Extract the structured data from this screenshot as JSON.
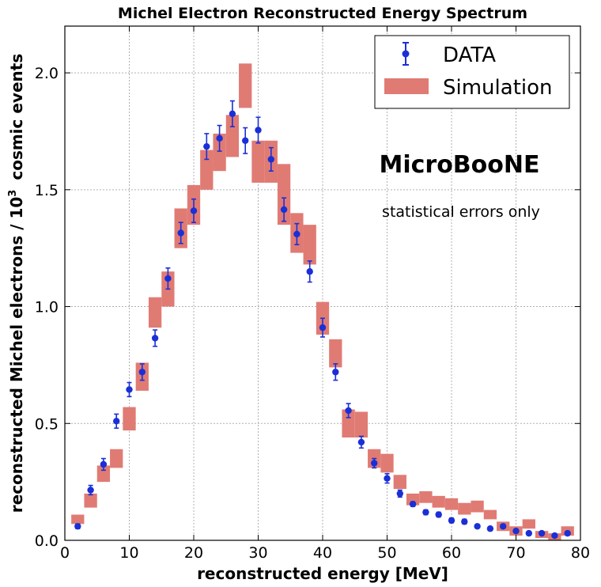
{
  "chart_data": {
    "type": "scatter",
    "title": "Michel Electron Reconstructed Energy Spectrum",
    "xlabel": "reconstructed energy [MeV]",
    "ylabel_prefix": "reconstructed Michel electrons / 10",
    "ylabel_exponent": "3",
    "ylabel_suffix": "cosmic events",
    "xlim": [
      0,
      80
    ],
    "ylim": [
      0,
      2.2
    ],
    "xticks": [
      0,
      10,
      20,
      30,
      40,
      50,
      60,
      70,
      80
    ],
    "yticks": [
      0.0,
      0.5,
      1.0,
      1.5,
      2.0
    ],
    "xtick_labels": [
      "0",
      "10",
      "20",
      "30",
      "40",
      "50",
      "60",
      "70",
      "80"
    ],
    "ytick_labels": [
      "0.0",
      "0.5",
      "1.0",
      "1.5",
      "2.0"
    ],
    "grid": true,
    "legend_position": "top-right",
    "annotations": [
      "MicroBooNE",
      "statistical errors only"
    ],
    "series": [
      {
        "name": "DATA",
        "color": "#1a2fd6",
        "x": [
          2,
          4,
          6,
          8,
          10,
          12,
          14,
          16,
          18,
          20,
          22,
          24,
          26,
          28,
          30,
          32,
          34,
          36,
          38,
          40,
          42,
          44,
          46,
          48,
          50,
          52,
          54,
          56,
          58,
          60,
          62,
          64,
          66,
          68,
          70,
          72,
          74,
          76,
          78
        ],
        "y": [
          0.06,
          0.215,
          0.325,
          0.51,
          0.645,
          0.72,
          0.865,
          1.12,
          1.315,
          1.41,
          1.685,
          1.72,
          1.825,
          1.71,
          1.755,
          1.63,
          1.415,
          1.31,
          1.15,
          0.91,
          0.72,
          0.555,
          0.42,
          0.33,
          0.265,
          0.2,
          0.155,
          0.12,
          0.11,
          0.085,
          0.08,
          0.06,
          0.05,
          0.06,
          0.04,
          0.03,
          0.03,
          0.02,
          0.03
        ],
        "err": [
          0.01,
          0.02,
          0.025,
          0.03,
          0.03,
          0.035,
          0.035,
          0.045,
          0.045,
          0.05,
          0.055,
          0.055,
          0.055,
          0.055,
          0.055,
          0.05,
          0.05,
          0.045,
          0.045,
          0.04,
          0.035,
          0.03,
          0.025,
          0.02,
          0.02,
          0.015,
          0.01,
          0.01,
          0.01,
          0.01,
          0.01,
          0.005,
          0.005,
          0.005,
          0.005,
          0.005,
          0.005,
          0.005,
          0.005
        ]
      },
      {
        "name": "Simulation",
        "color": "#e07b74",
        "x": [
          2,
          4,
          6,
          8,
          10,
          12,
          14,
          16,
          18,
          20,
          22,
          24,
          26,
          28,
          30,
          32,
          34,
          36,
          38,
          40,
          42,
          44,
          46,
          48,
          50,
          52,
          54,
          56,
          58,
          60,
          62,
          64,
          66,
          68,
          70,
          72,
          74,
          76,
          78
        ],
        "y_low": [
          0.07,
          0.14,
          0.25,
          0.31,
          0.47,
          0.64,
          0.91,
          1.0,
          1.25,
          1.35,
          1.5,
          1.58,
          1.64,
          1.85,
          1.53,
          1.53,
          1.35,
          1.23,
          1.18,
          0.88,
          0.74,
          0.44,
          0.44,
          0.31,
          0.29,
          0.22,
          0.15,
          0.16,
          0.14,
          0.13,
          0.11,
          0.12,
          0.09,
          0.04,
          0.02,
          0.05,
          0.01,
          0.0,
          0.02
        ],
        "y_high": [
          0.11,
          0.2,
          0.32,
          0.39,
          0.57,
          0.76,
          1.04,
          1.15,
          1.42,
          1.52,
          1.67,
          1.74,
          1.82,
          2.04,
          1.71,
          1.71,
          1.61,
          1.4,
          1.35,
          1.02,
          0.86,
          0.56,
          0.55,
          0.39,
          0.37,
          0.28,
          0.2,
          0.21,
          0.19,
          0.18,
          0.16,
          0.17,
          0.13,
          0.08,
          0.06,
          0.09,
          0.04,
          0.03,
          0.06
        ]
      }
    ]
  }
}
